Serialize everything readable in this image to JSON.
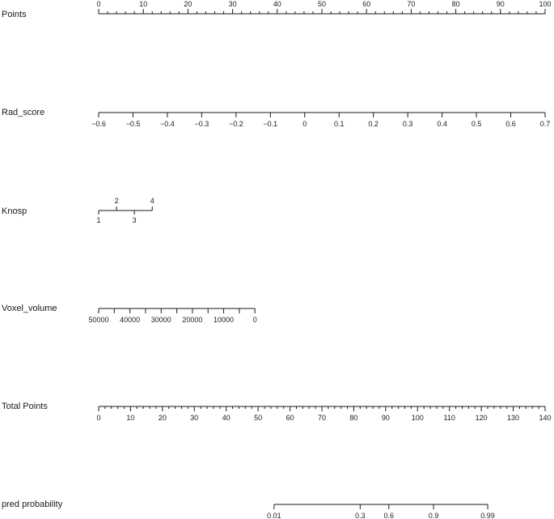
{
  "chart_data": {
    "type": "nomogram",
    "rows": [
      {
        "id": "points",
        "label": "Points",
        "ticks": [
          {
            "value": 0,
            "label": "0"
          },
          {
            "value": 10,
            "label": "10"
          },
          {
            "value": 20,
            "label": "20"
          },
          {
            "value": 30,
            "label": "30"
          },
          {
            "value": 40,
            "label": "40"
          },
          {
            "value": 50,
            "label": "50"
          },
          {
            "value": 60,
            "label": "60"
          },
          {
            "value": 70,
            "label": "70"
          },
          {
            "value": 80,
            "label": "80"
          },
          {
            "value": 90,
            "label": "90"
          },
          {
            "value": 100,
            "label": "100"
          }
        ],
        "minor_step": 2,
        "range": [
          0,
          100
        ],
        "label_side": "above"
      },
      {
        "id": "rad_score",
        "label": "Rad_score",
        "ticks": [
          {
            "value": -0.6,
            "label": "−0.6"
          },
          {
            "value": -0.5,
            "label": "−0.5"
          },
          {
            "value": -0.4,
            "label": "−0.4"
          },
          {
            "value": -0.3,
            "label": "−0.3"
          },
          {
            "value": -0.2,
            "label": "−0.2"
          },
          {
            "value": -0.1,
            "label": "−0.1"
          },
          {
            "value": 0,
            "label": "0"
          },
          {
            "value": 0.1,
            "label": "0.1"
          },
          {
            "value": 0.2,
            "label": "0.2"
          },
          {
            "value": 0.3,
            "label": "0.3"
          },
          {
            "value": 0.4,
            "label": "0.4"
          },
          {
            "value": 0.5,
            "label": "0.5"
          },
          {
            "value": 0.6,
            "label": "0.6"
          },
          {
            "value": 0.7,
            "label": "0.7"
          }
        ],
        "points_range": [
          0,
          100
        ],
        "label_side": "below"
      },
      {
        "id": "knosp",
        "label": "Knosp",
        "ticks": [
          {
            "value": 1,
            "label": "1",
            "points": 0,
            "side": "below"
          },
          {
            "value": 2,
            "label": "2",
            "points": 4,
            "side": "above"
          },
          {
            "value": 3,
            "label": "3",
            "points": 8,
            "side": "below"
          },
          {
            "value": 4,
            "label": "4",
            "points": 12,
            "side": "above"
          }
        ]
      },
      {
        "id": "voxel_volume",
        "label": "Voxel_volume",
        "ticks": [
          {
            "value": 50000,
            "label": "50000"
          },
          {
            "value": 45000,
            "label": ""
          },
          {
            "value": 40000,
            "label": "40000"
          },
          {
            "value": 35000,
            "label": ""
          },
          {
            "value": 30000,
            "label": "30000"
          },
          {
            "value": 25000,
            "label": ""
          },
          {
            "value": 20000,
            "label": "20000"
          },
          {
            "value": 15000,
            "label": ""
          },
          {
            "value": 10000,
            "label": "10000"
          },
          {
            "value": 5000,
            "label": ""
          },
          {
            "value": 0,
            "label": "0"
          }
        ],
        "value_range": [
          50000,
          0
        ],
        "points_range": [
          0,
          35
        ],
        "label_side": "below"
      },
      {
        "id": "total_points",
        "label": "Total Points",
        "ticks": [
          {
            "value": 0,
            "label": "0"
          },
          {
            "value": 10,
            "label": "10"
          },
          {
            "value": 20,
            "label": "20"
          },
          {
            "value": 30,
            "label": "30"
          },
          {
            "value": 40,
            "label": "40"
          },
          {
            "value": 50,
            "label": "50"
          },
          {
            "value": 60,
            "label": "60"
          },
          {
            "value": 70,
            "label": "70"
          },
          {
            "value": 80,
            "label": "80"
          },
          {
            "value": 90,
            "label": "90"
          },
          {
            "value": 100,
            "label": "100"
          },
          {
            "value": 110,
            "label": "110"
          },
          {
            "value": 120,
            "label": "120"
          },
          {
            "value": 130,
            "label": "130"
          },
          {
            "value": 140,
            "label": "140"
          }
        ],
        "minor_step": 2,
        "range": [
          0,
          140
        ],
        "label_side": "below"
      },
      {
        "id": "pred_probability",
        "label": "pred probability",
        "ticks": [
          {
            "value": 0.01,
            "label": "0.01",
            "total_points": 55
          },
          {
            "value": 0.3,
            "label": "0.3",
            "total_points": 82
          },
          {
            "value": 0.6,
            "label": "0.6",
            "total_points": 91
          },
          {
            "value": 0.9,
            "label": "0.9",
            "total_points": 105
          },
          {
            "value": 0.99,
            "label": "0.99",
            "total_points": 122
          }
        ],
        "label_side": "below"
      }
    ]
  }
}
